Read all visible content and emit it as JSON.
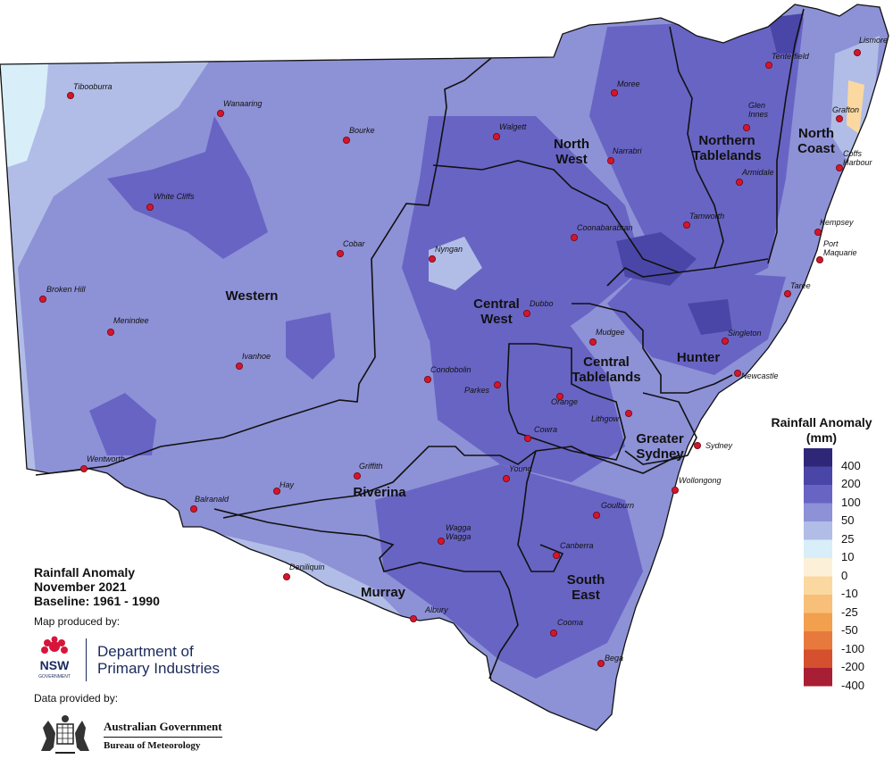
{
  "legend": {
    "title_line1": "Rainfall Anomaly",
    "title_line2": "(mm)",
    "ticks": [
      "400",
      "200",
      "100",
      "50",
      "25",
      "10",
      "0",
      "-10",
      "-25",
      "-50",
      "-100",
      "-200",
      "-400"
    ],
    "colors": [
      "#2e2778",
      "#4a46a8",
      "#6864c4",
      "#8d91d6",
      "#b1bde6",
      "#d8eef8",
      "#fdf0d8",
      "#fbd8a0",
      "#f8bf78",
      "#f2a04e",
      "#e8793c",
      "#d5502e",
      "#a81e34"
    ]
  },
  "info": {
    "title_line1": "Rainfall Anomaly",
    "title_line2": "November 2021",
    "title_line3": "Baseline: 1961 - 1990",
    "produced_by": "Map produced by:",
    "dpi_line1": "Department of",
    "dpi_line2": "Primary Industries",
    "nsw_label": "NSW",
    "nsw_sub": "GOVERNMENT",
    "data_by": "Data provided by:",
    "bom_line1": "Australian Government",
    "bom_line2": "Bureau of Meteorology"
  },
  "regions": [
    {
      "lines": [
        "Western"
      ]
    },
    {
      "lines": [
        "North",
        "West"
      ]
    },
    {
      "lines": [
        "Northern",
        "Tablelands"
      ]
    },
    {
      "lines": [
        "North",
        "Coast"
      ]
    },
    {
      "lines": [
        "Central",
        "West"
      ]
    },
    {
      "lines": [
        "Central",
        "Tablelands"
      ]
    },
    {
      "lines": [
        "Hunter"
      ]
    },
    {
      "lines": [
        "Greater",
        "Sydney"
      ]
    },
    {
      "lines": [
        "Riverina"
      ]
    },
    {
      "lines": [
        "Murray"
      ]
    },
    {
      "lines": [
        "South",
        "East"
      ]
    }
  ],
  "towns": [
    {
      "name": "Tibooburra"
    },
    {
      "name": "Wanaaring"
    },
    {
      "name": "Bourke"
    },
    {
      "name": "Moree"
    },
    {
      "name": "Walgett"
    },
    {
      "name": "Tenterfield"
    },
    {
      "name": "Lismore"
    },
    {
      "name": "Grafton"
    },
    {
      "name": "Glen Innes"
    },
    {
      "name": "Narrabri"
    },
    {
      "name": "Coffs Harbour"
    },
    {
      "name": "Armidale"
    },
    {
      "name": "White Cliffs"
    },
    {
      "name": "Tamworth"
    },
    {
      "name": "Kempsey"
    },
    {
      "name": "Coonabarabran"
    },
    {
      "name": "Port Maquarie"
    },
    {
      "name": "Cobar"
    },
    {
      "name": "Nyngan"
    },
    {
      "name": "Broken Hill"
    },
    {
      "name": "Taree"
    },
    {
      "name": "Dubbo"
    },
    {
      "name": "Menindee"
    },
    {
      "name": "Mudgee"
    },
    {
      "name": "Singleton"
    },
    {
      "name": "Ivanhoe"
    },
    {
      "name": "Newcastle"
    },
    {
      "name": "Condobolin"
    },
    {
      "name": "Parkes"
    },
    {
      "name": "Orange"
    },
    {
      "name": "Lithgow"
    },
    {
      "name": "Cowra"
    },
    {
      "name": "Sydney"
    },
    {
      "name": "Wentworth"
    },
    {
      "name": "Griffith"
    },
    {
      "name": "Young"
    },
    {
      "name": "Hay"
    },
    {
      "name": "Wollongong"
    },
    {
      "name": "Balranald"
    },
    {
      "name": "Goulburn"
    },
    {
      "name": "Wagga Wagga"
    },
    {
      "name": "Canberra"
    },
    {
      "name": "Deniliquin"
    },
    {
      "name": "Albury"
    },
    {
      "name": "Cooma"
    },
    {
      "name": "Bega"
    }
  ]
}
